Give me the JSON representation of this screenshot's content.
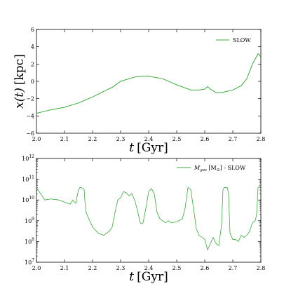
{
  "chart_data": [
    {
      "type": "line",
      "xlim": [
        2.0,
        2.8
      ],
      "ylim": [
        -6,
        6
      ],
      "x_ticks": [
        "2.0",
        "2.1",
        "2.2",
        "2.3",
        "2.4",
        "2.5",
        "2.6",
        "2.7",
        "2.8"
      ],
      "y_ticks": [
        "−6",
        "−4",
        "−2",
        "0",
        "2",
        "4",
        "6"
      ],
      "ylabel_var": "x(t)",
      "ylabel_unit": "[kpc]",
      "xlabel_var": "t",
      "xlabel_unit": "[Gyr]",
      "legend_position": "top-right",
      "series": [
        {
          "name": "SLOW",
          "color": "#3aaa3a",
          "x": [
            2.0,
            2.05,
            2.1,
            2.15,
            2.2,
            2.25,
            2.27,
            2.3,
            2.35,
            2.38,
            2.4,
            2.45,
            2.5,
            2.55,
            2.58,
            2.6,
            2.61,
            2.62,
            2.64,
            2.66,
            2.7,
            2.73,
            2.75,
            2.77,
            2.79,
            2.8
          ],
          "y": [
            -3.7,
            -3.3,
            -3.0,
            -2.5,
            -1.8,
            -1.0,
            -0.7,
            0.0,
            0.5,
            0.6,
            0.6,
            0.3,
            -0.4,
            -1.0,
            -1.0,
            -0.9,
            -0.6,
            -0.9,
            -1.3,
            -1.3,
            -1.0,
            -0.5,
            0.3,
            2.0,
            3.2,
            2.8
          ]
        }
      ]
    },
    {
      "type": "line",
      "xlim": [
        2.0,
        2.8
      ],
      "ylim": [
        7,
        12
      ],
      "log_scale_y": true,
      "x_ticks": [
        "2.0",
        "2.1",
        "2.2",
        "2.3",
        "2.4",
        "2.5",
        "2.6",
        "2.7",
        "2.8"
      ],
      "y_tick_base": "10",
      "y_tick_exps": [
        "7",
        "8",
        "9",
        "10",
        "11",
        "12"
      ],
      "xlabel_var": "t",
      "xlabel_unit": "[Gyr]",
      "legend_position": "top-right",
      "series": [
        {
          "name": "M_gas [M⊙] - SLOW",
          "legend_main": "M",
          "legend_sub": "gas",
          "legend_rest": " [M",
          "legend_sun": "⊙",
          "legend_end": "] - SLOW",
          "color": "#3aaa3a",
          "x": [
            2.0,
            2.01,
            2.02,
            2.03,
            2.05,
            2.08,
            2.1,
            2.12,
            2.13,
            2.135,
            2.14,
            2.15,
            2.155,
            2.16,
            2.17,
            2.175,
            2.18,
            2.2,
            2.22,
            2.24,
            2.26,
            2.27,
            2.28,
            2.29,
            2.3,
            2.31,
            2.32,
            2.33,
            2.34,
            2.35,
            2.36,
            2.37,
            2.375,
            2.38,
            2.39,
            2.4,
            2.41,
            2.42,
            2.43,
            2.44,
            2.45,
            2.46,
            2.47,
            2.48,
            2.5,
            2.52,
            2.53,
            2.54,
            2.55,
            2.56,
            2.57,
            2.58,
            2.59,
            2.6,
            2.61,
            2.62,
            2.63,
            2.64,
            2.65,
            2.66,
            2.665,
            2.67,
            2.68,
            2.685,
            2.69,
            2.7,
            2.71,
            2.72,
            2.73,
            2.74,
            2.75,
            2.76,
            2.77,
            2.78,
            2.785,
            2.79,
            2.8
          ],
          "y": [
            10.6,
            10.4,
            10.2,
            10.0,
            10.05,
            10.0,
            9.9,
            9.8,
            10.0,
            9.9,
            9.85,
            10.5,
            10.6,
            10.6,
            10.5,
            9.5,
            9.3,
            8.7,
            8.4,
            8.3,
            8.5,
            8.7,
            9.4,
            10.0,
            10.1,
            10.4,
            10.35,
            10.2,
            10.3,
            10.0,
            9.5,
            8.9,
            8.85,
            8.9,
            9.6,
            10.4,
            10.55,
            10.3,
            9.4,
            9.1,
            9.0,
            8.9,
            9.0,
            8.9,
            8.95,
            9.1,
            9.6,
            10.6,
            10.5,
            9.6,
            8.6,
            8.3,
            8.2,
            8.1,
            7.6,
            7.9,
            8.2,
            7.9,
            7.8,
            8.8,
            10.5,
            10.6,
            10.6,
            10.3,
            8.4,
            8.1,
            8.1,
            8.0,
            8.3,
            8.2,
            8.3,
            8.5,
            8.9,
            9.0,
            9.3,
            10.6,
            10.7
          ]
        }
      ]
    }
  ]
}
